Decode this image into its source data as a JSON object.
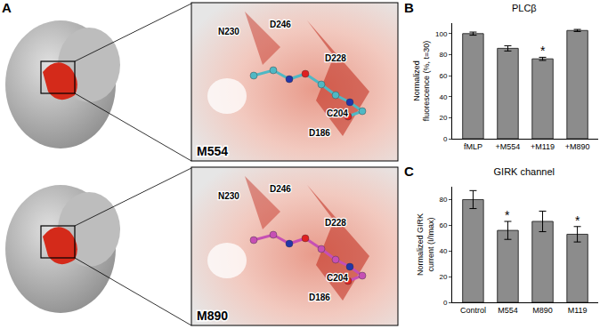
{
  "panel_a": {
    "letter": "A",
    "views": [
      {
        "label": "M554",
        "residues": [
          "N230",
          "D246",
          "D228",
          "C204",
          "D186"
        ]
      },
      {
        "label": "M890",
        "residues": [
          "N230",
          "D246",
          "D228",
          "C204",
          "D186"
        ]
      }
    ]
  },
  "chart_data": [
    {
      "panel": "B",
      "type": "bar",
      "title": "PLCβ",
      "y_label": "Normalized fluorescence (%, t=30)",
      "categories": [
        "fMLP",
        "+M554",
        "+M119",
        "+M890"
      ],
      "values": [
        100,
        86,
        76,
        103
      ],
      "errors": [
        1.5,
        2.5,
        1.5,
        1
      ],
      "color": "#8c8c8c",
      "ylim": [
        0,
        110
      ],
      "yticks": [
        0,
        20,
        40,
        60,
        80,
        100
      ],
      "annotations": [
        {
          "category": "+M119",
          "text": "*"
        }
      ]
    },
    {
      "panel": "C",
      "type": "bar",
      "title": "GIRK channel",
      "y_label": "Normalized GIRK current (I/Imax)",
      "categories": [
        "Control",
        "M554",
        "M890",
        "M119"
      ],
      "values": [
        80,
        56,
        63,
        53
      ],
      "errors": [
        7,
        7,
        8,
        6
      ],
      "color": "#8c8c8c",
      "ylim": [
        0,
        90
      ],
      "yticks": [
        0,
        20,
        40,
        60,
        80
      ],
      "annotations": [
        {
          "category": "M554",
          "text": "*"
        },
        {
          "category": "M119",
          "text": "*"
        }
      ]
    }
  ]
}
